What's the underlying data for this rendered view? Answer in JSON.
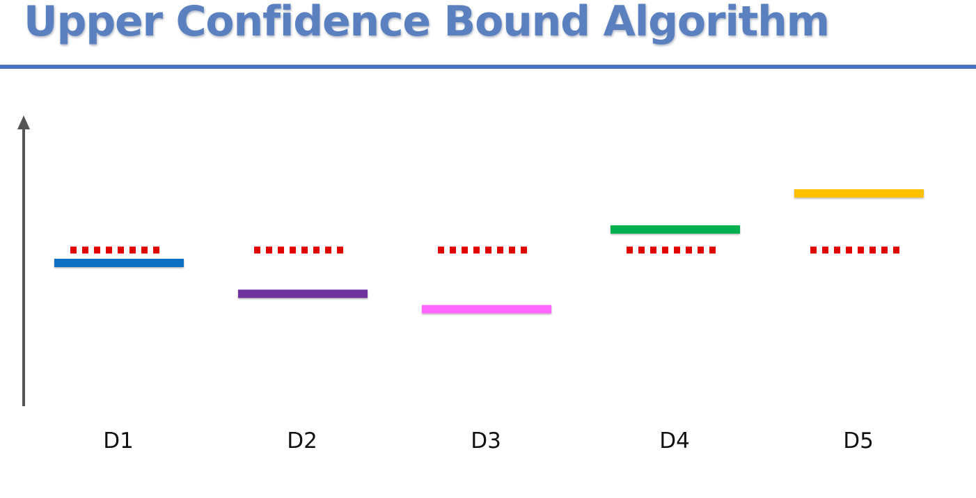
{
  "slide": {
    "title": "Upper Confidence Bound Algorithm"
  },
  "theme": {
    "title_color": "#5a80c0",
    "rule_color": "#4a74bd",
    "axis_color": "#555555",
    "expected_return_color": "#e00000"
  },
  "diagram": {
    "axis_icon": "up-arrow",
    "distributions": [
      {
        "label": "D1",
        "color": "#0a6fc2",
        "actual_value": 0.6,
        "expected_value": 0.65
      },
      {
        "label": "D2",
        "color": "#7030a0",
        "actual_value": 0.48,
        "expected_value": 0.65
      },
      {
        "label": "D3",
        "color": "#ff66ff",
        "actual_value": 0.42,
        "expected_value": 0.65
      },
      {
        "label": "D4",
        "color": "#00b050",
        "actual_value": 0.73,
        "expected_value": 0.65
      },
      {
        "label": "D5",
        "color": "#ffc000",
        "actual_value": 0.87,
        "expected_value": 0.65
      }
    ]
  }
}
